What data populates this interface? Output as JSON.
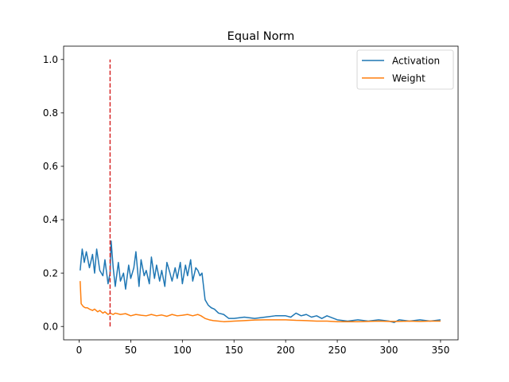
{
  "chart_data": {
    "type": "line",
    "title": "Equal Norm",
    "xlabel": "",
    "ylabel": "",
    "xlim": [
      -15,
      367
    ],
    "ylim": [
      -0.05,
      1.05
    ],
    "xticks": [
      0,
      50,
      100,
      150,
      200,
      250,
      300,
      350
    ],
    "yticks": [
      0.0,
      0.2,
      0.4,
      0.6,
      0.8,
      1.0
    ],
    "ytick_labels": [
      "0.0",
      "0.2",
      "0.4",
      "0.6",
      "0.8",
      "1.0"
    ],
    "grid": false,
    "legend": "top-right",
    "vline": {
      "x": 30,
      "ymin": 0.0,
      "ymax": 1.0,
      "color": "#d62728",
      "style": "dashed"
    },
    "series": [
      {
        "name": "Activation",
        "color": "#1f77b4",
        "x": [
          1,
          3,
          5,
          7,
          10,
          13,
          15,
          17,
          20,
          23,
          25,
          28,
          30,
          31,
          33,
          35,
          38,
          40,
          43,
          45,
          48,
          50,
          53,
          55,
          58,
          60,
          63,
          65,
          68,
          70,
          73,
          75,
          78,
          80,
          83,
          85,
          88,
          90,
          93,
          95,
          98,
          100,
          103,
          105,
          108,
          110,
          113,
          115,
          117,
          119,
          122,
          125,
          128,
          131,
          135,
          140,
          145,
          150,
          160,
          170,
          180,
          190,
          200,
          205,
          210,
          215,
          220,
          225,
          230,
          235,
          240,
          250,
          260,
          270,
          280,
          290,
          300,
          305,
          310,
          320,
          330,
          340,
          350
        ],
        "values": [
          0.21,
          0.29,
          0.24,
          0.28,
          0.22,
          0.27,
          0.2,
          0.29,
          0.21,
          0.19,
          0.25,
          0.16,
          0.2,
          0.32,
          0.22,
          0.15,
          0.24,
          0.17,
          0.2,
          0.14,
          0.23,
          0.18,
          0.22,
          0.28,
          0.15,
          0.25,
          0.19,
          0.21,
          0.16,
          0.26,
          0.18,
          0.23,
          0.17,
          0.21,
          0.15,
          0.24,
          0.2,
          0.17,
          0.22,
          0.18,
          0.24,
          0.16,
          0.23,
          0.19,
          0.25,
          0.17,
          0.22,
          0.21,
          0.19,
          0.2,
          0.1,
          0.08,
          0.07,
          0.065,
          0.05,
          0.045,
          0.03,
          0.03,
          0.035,
          0.03,
          0.035,
          0.04,
          0.04,
          0.035,
          0.05,
          0.04,
          0.045,
          0.035,
          0.04,
          0.03,
          0.04,
          0.025,
          0.02,
          0.025,
          0.02,
          0.025,
          0.02,
          0.015,
          0.025,
          0.02,
          0.025,
          0.02,
          0.025
        ]
      },
      {
        "name": "Weight",
        "color": "#ff7f0e",
        "x": [
          1,
          2,
          4,
          6,
          8,
          10,
          13,
          15,
          18,
          20,
          23,
          25,
          28,
          30,
          33,
          35,
          40,
          45,
          50,
          55,
          60,
          65,
          70,
          75,
          80,
          85,
          90,
          95,
          100,
          105,
          110,
          115,
          118,
          122,
          126,
          130,
          135,
          140,
          150,
          160,
          170,
          180,
          190,
          200,
          210,
          220,
          230,
          240,
          250,
          260,
          270,
          280,
          290,
          300,
          310,
          320,
          330,
          340,
          350
        ],
        "values": [
          0.17,
          0.085,
          0.075,
          0.07,
          0.07,
          0.065,
          0.06,
          0.065,
          0.055,
          0.06,
          0.05,
          0.055,
          0.045,
          0.05,
          0.045,
          0.05,
          0.045,
          0.048,
          0.04,
          0.045,
          0.042,
          0.04,
          0.045,
          0.04,
          0.043,
          0.038,
          0.045,
          0.04,
          0.042,
          0.045,
          0.04,
          0.045,
          0.04,
          0.03,
          0.025,
          0.022,
          0.02,
          0.018,
          0.02,
          0.022,
          0.024,
          0.025,
          0.025,
          0.025,
          0.023,
          0.022,
          0.02,
          0.02,
          0.018,
          0.018,
          0.018,
          0.019,
          0.02,
          0.019,
          0.019,
          0.02,
          0.019,
          0.02,
          0.02
        ]
      }
    ]
  }
}
